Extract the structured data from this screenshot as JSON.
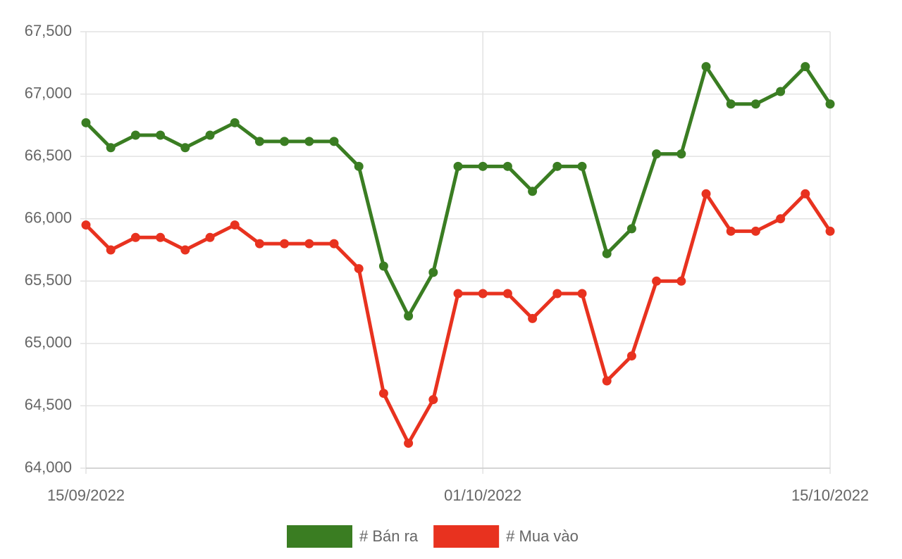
{
  "chart_data": {
    "type": "line",
    "categories": [
      "15/09/2022",
      null,
      null,
      null,
      null,
      null,
      null,
      null,
      null,
      null,
      null,
      null,
      null,
      null,
      null,
      null,
      "01/10/2022",
      null,
      null,
      null,
      null,
      null,
      null,
      null,
      null,
      null,
      null,
      null,
      null,
      null,
      "15/10/2022"
    ],
    "series": [
      {
        "name": "# Bán ra",
        "color": "#3a7d22",
        "values": [
          66770,
          66570,
          66670,
          66670,
          66570,
          66670,
          66770,
          66620,
          66620,
          66620,
          66620,
          66420,
          65620,
          65220,
          65570,
          66420,
          66420,
          66420,
          66220,
          66420,
          66420,
          65720,
          65920,
          66520,
          66520,
          67220,
          66920,
          66920,
          67020,
          67220,
          66920
        ]
      },
      {
        "name": "# Mua vào",
        "color": "#e8321f",
        "values": [
          65950,
          65750,
          65850,
          65850,
          65750,
          65850,
          65950,
          65800,
          65800,
          65800,
          65800,
          65600,
          64600,
          64200,
          64550,
          65400,
          65400,
          65400,
          65200,
          65400,
          65400,
          64700,
          64900,
          65500,
          65500,
          66200,
          65900,
          65900,
          66000,
          66200,
          65900
        ]
      }
    ],
    "ylim": [
      64000,
      67500
    ],
    "yticks": [
      {
        "value": 64000,
        "label": "64,000"
      },
      {
        "value": 64500,
        "label": "64,500"
      },
      {
        "value": 65000,
        "label": "65,000"
      },
      {
        "value": 65500,
        "label": "65,500"
      },
      {
        "value": 66000,
        "label": "66,000"
      },
      {
        "value": 66500,
        "label": "66,500"
      },
      {
        "value": 67000,
        "label": "67,000"
      },
      {
        "value": 67500,
        "label": "67,500"
      }
    ],
    "grid": true,
    "legend": "bottom"
  }
}
